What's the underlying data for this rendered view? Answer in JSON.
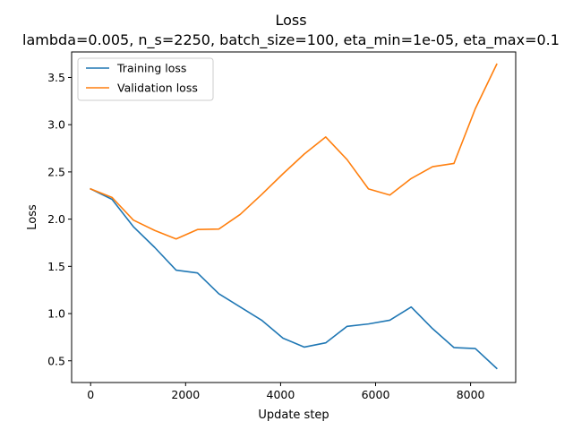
{
  "chart_data": {
    "type": "line",
    "title": "Loss",
    "subtitle": "lambda=0.005, n_s=2250, batch_size=100, eta_min=1e-05, eta_max=0.1",
    "xlabel": "Update step",
    "ylabel": "Loss",
    "xlim": [
      -400,
      8950
    ],
    "ylim": [
      0.27,
      3.77
    ],
    "xticks": [
      0,
      2000,
      4000,
      6000,
      8000
    ],
    "xtick_labels": [
      "0",
      "2000",
      "4000",
      "6000",
      "8000"
    ],
    "yticks": [
      0.5,
      1.0,
      1.5,
      2.0,
      2.5,
      3.0,
      3.5
    ],
    "ytick_labels": [
      "0.5",
      "1.0",
      "1.5",
      "2.0",
      "2.5",
      "3.0",
      "3.5"
    ],
    "grid": false,
    "legend": "upper-left",
    "x": [
      0,
      450,
      900,
      1350,
      1800,
      2250,
      2700,
      3150,
      3600,
      4050,
      4500,
      4950,
      5400,
      5850,
      6300,
      6750,
      7200,
      7650,
      8100,
      8550
    ],
    "series": [
      {
        "name": "Training loss",
        "color": "#1f77b4",
        "values": [
          2.32,
          2.21,
          1.92,
          1.7,
          1.46,
          1.43,
          1.21,
          1.07,
          0.93,
          0.74,
          0.645,
          0.69,
          0.865,
          0.89,
          0.93,
          1.07,
          0.84,
          0.64,
          0.63,
          0.42
        ]
      },
      {
        "name": "Validation loss",
        "color": "#ff7f0e",
        "values": [
          2.32,
          2.23,
          1.99,
          1.88,
          1.79,
          1.89,
          1.895,
          2.05,
          2.26,
          2.48,
          2.69,
          2.87,
          2.63,
          2.32,
          2.255,
          2.43,
          2.555,
          2.59,
          3.17,
          3.64
        ]
      }
    ]
  }
}
